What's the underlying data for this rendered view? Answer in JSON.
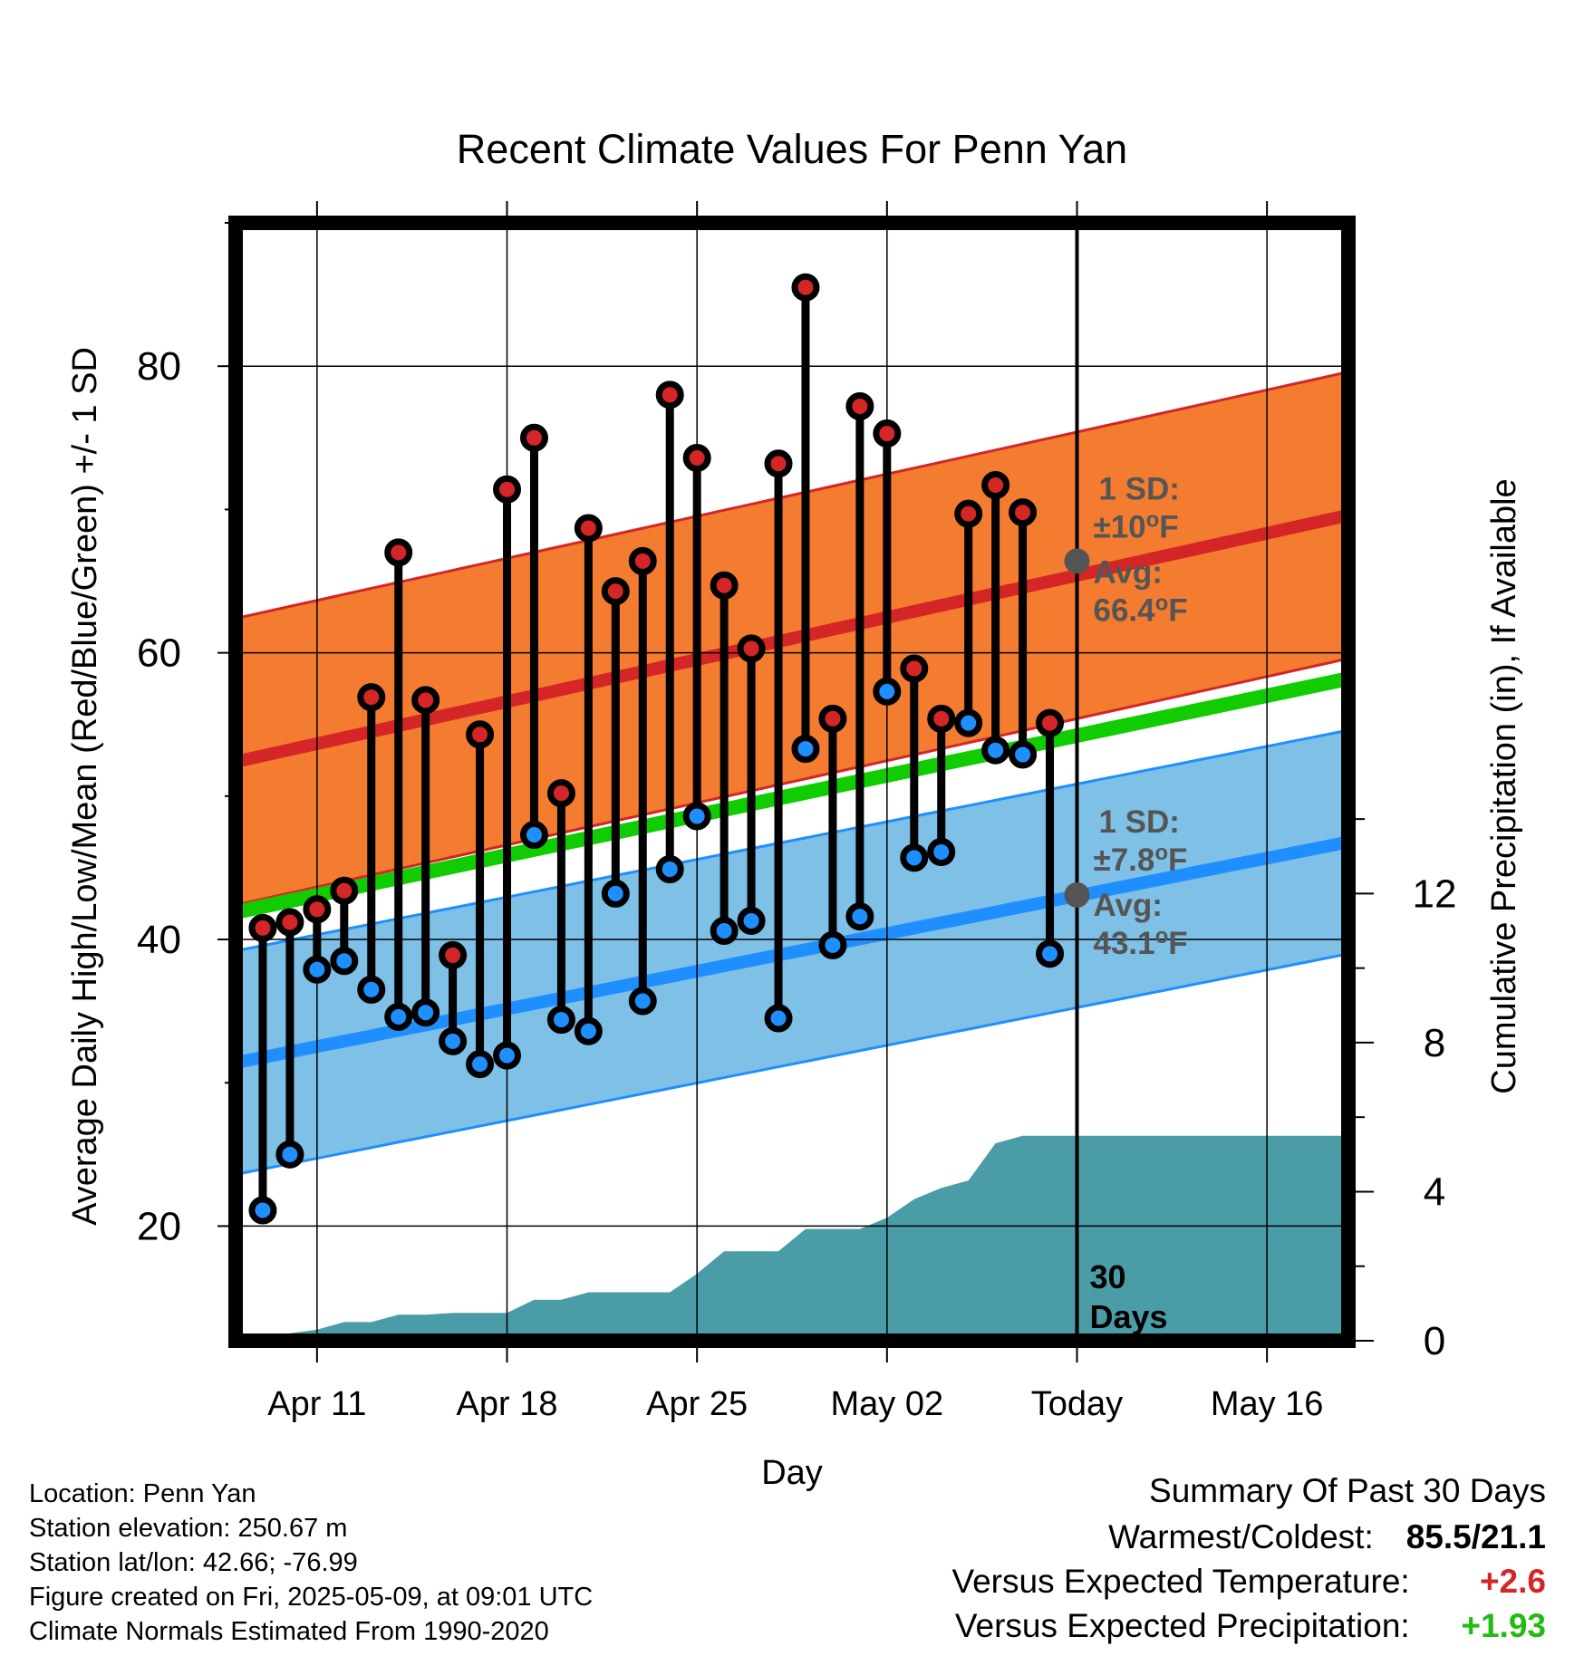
{
  "chart_data": {
    "type": "line",
    "title": "Recent Climate Values For Penn Yan",
    "xlabel": "Day",
    "ylabel": "Average Daily High/Low/Mean (Red/Blue/Green) +/- 1 SD",
    "y2label": "Cumulative Precipitation (in), If Available",
    "xtick_labels": [
      "Apr 11",
      "Apr 18",
      "Apr 25",
      "May 02",
      "Today",
      "May 16"
    ],
    "xtick_dates": [
      "2025-04-11",
      "2025-04-18",
      "2025-04-25",
      "2025-05-02",
      "2025-05-09",
      "2025-05-16"
    ],
    "xlim": [
      "2025-04-08",
      "2025-05-19"
    ],
    "ylim": [
      12,
      90
    ],
    "yticks": [
      20,
      40,
      60,
      80
    ],
    "y2lim": [
      0,
      30
    ],
    "y2ticks": [
      0,
      4,
      8,
      12
    ],
    "today": "2025-05-09",
    "today_label": "30\nDays",
    "grid": true,
    "colors": {
      "high": "#d42626",
      "low": "#1f8fff",
      "mean": "#11cc00",
      "high_band": "#f47c30",
      "low_band": "#7fc0e6",
      "precip": "#4a9ca6",
      "annot": "#555555"
    },
    "normals": {
      "dates": [
        "2025-04-08",
        "2025-05-19"
      ],
      "avg_high": [
        52.4,
        69.6
      ],
      "high_sd": 10,
      "avg_low": [
        31.4,
        46.8
      ],
      "low_sd": 7.8,
      "avg_mean": [
        41.9,
        58.2
      ]
    },
    "annotations": {
      "high_sd_label": "1 SD:",
      "high_sd_value": "±10",
      "high_avg_label": "Avg:",
      "high_avg_value": "66.4",
      "high_avg_today": 66.4,
      "low_sd_label": "1 SD:",
      "low_sd_value": "±7.8",
      "low_avg_label": "Avg:",
      "low_avg_value": "43.1",
      "low_avg_today": 43.1,
      "degree_symbol": "o",
      "unit": "F"
    },
    "series": [
      {
        "name": "Daily High",
        "x": [
          "2025-04-09",
          "2025-04-10",
          "2025-04-11",
          "2025-04-12",
          "2025-04-13",
          "2025-04-14",
          "2025-04-15",
          "2025-04-16",
          "2025-04-17",
          "2025-04-18",
          "2025-04-19",
          "2025-04-20",
          "2025-04-21",
          "2025-04-22",
          "2025-04-23",
          "2025-04-24",
          "2025-04-25",
          "2025-04-26",
          "2025-04-27",
          "2025-04-28",
          "2025-04-29",
          "2025-04-30",
          "2025-05-01",
          "2025-05-02",
          "2025-05-03",
          "2025-05-04",
          "2025-05-05",
          "2025-05-06",
          "2025-05-07",
          "2025-05-08"
        ],
        "values": [
          40.8,
          41.2,
          42.1,
          43.4,
          56.9,
          67.0,
          56.7,
          38.9,
          54.3,
          71.4,
          75.0,
          50.2,
          68.7,
          64.3,
          66.4,
          78.0,
          73.6,
          64.7,
          60.3,
          73.2,
          85.5,
          55.4,
          77.2,
          75.3,
          58.9,
          55.4,
          69.7,
          71.7,
          69.8,
          55.1
        ]
      },
      {
        "name": "Daily Low",
        "x": [
          "2025-04-09",
          "2025-04-10",
          "2025-04-11",
          "2025-04-12",
          "2025-04-13",
          "2025-04-14",
          "2025-04-15",
          "2025-04-16",
          "2025-04-17",
          "2025-04-18",
          "2025-04-19",
          "2025-04-20",
          "2025-04-21",
          "2025-04-22",
          "2025-04-23",
          "2025-04-24",
          "2025-04-25",
          "2025-04-26",
          "2025-04-27",
          "2025-04-28",
          "2025-04-29",
          "2025-04-30",
          "2025-05-01",
          "2025-05-02",
          "2025-05-03",
          "2025-05-04",
          "2025-05-05",
          "2025-05-06",
          "2025-05-07",
          "2025-05-08"
        ],
        "values": [
          21.1,
          25.0,
          37.9,
          38.5,
          36.5,
          34.6,
          34.9,
          32.9,
          31.3,
          31.9,
          47.3,
          34.4,
          33.6,
          43.2,
          35.7,
          44.9,
          48.6,
          40.6,
          41.3,
          34.5,
          53.3,
          39.6,
          41.6,
          57.3,
          45.7,
          46.1,
          55.1,
          53.2,
          52.9,
          39.0
        ]
      },
      {
        "name": "Cumulative Precipitation",
        "x": [
          "2025-04-08",
          "2025-04-09",
          "2025-04-10",
          "2025-04-11",
          "2025-04-12",
          "2025-04-13",
          "2025-04-14",
          "2025-04-15",
          "2025-04-16",
          "2025-04-17",
          "2025-04-18",
          "2025-04-19",
          "2025-04-20",
          "2025-04-21",
          "2025-04-22",
          "2025-04-23",
          "2025-04-24",
          "2025-04-25",
          "2025-04-26",
          "2025-04-27",
          "2025-04-28",
          "2025-04-29",
          "2025-04-30",
          "2025-05-01",
          "2025-05-02",
          "2025-05-03",
          "2025-05-04",
          "2025-05-05",
          "2025-05-06",
          "2025-05-07",
          "2025-05-08",
          "2025-05-09",
          "2025-05-19"
        ],
        "values": [
          0,
          0,
          0.2,
          0.3,
          0.5,
          0.5,
          0.7,
          0.7,
          0.75,
          0.75,
          0.75,
          1.1,
          1.1,
          1.3,
          1.3,
          1.3,
          1.3,
          1.8,
          2.4,
          2.4,
          2.4,
          3.0,
          3.0,
          3.0,
          3.3,
          3.8,
          4.1,
          4.3,
          5.3,
          5.5,
          5.5,
          5.5,
          5.5
        ]
      }
    ]
  },
  "info": {
    "location": "Location: Penn Yan",
    "elevation": "Station elevation: 250.67 m",
    "latlon": "Station lat/lon: 42.66; -76.99",
    "created": "Figure created on Fri, 2025-05-09, at 09:01 UTC",
    "normals": "Climate Normals Estimated From 1990-2020"
  },
  "summary": {
    "title": "Summary Of Past 30 Days",
    "warm_cold_label": "Warmest/Coldest:",
    "warm_cold_value": "85.5/21.1",
    "temp_label": "Versus Expected Temperature:",
    "temp_value": "+2.6",
    "temp_color": "#d42626",
    "precip_label": "Versus Expected Precipitation:",
    "precip_value": "+1.93",
    "precip_color": "#22bb11"
  }
}
